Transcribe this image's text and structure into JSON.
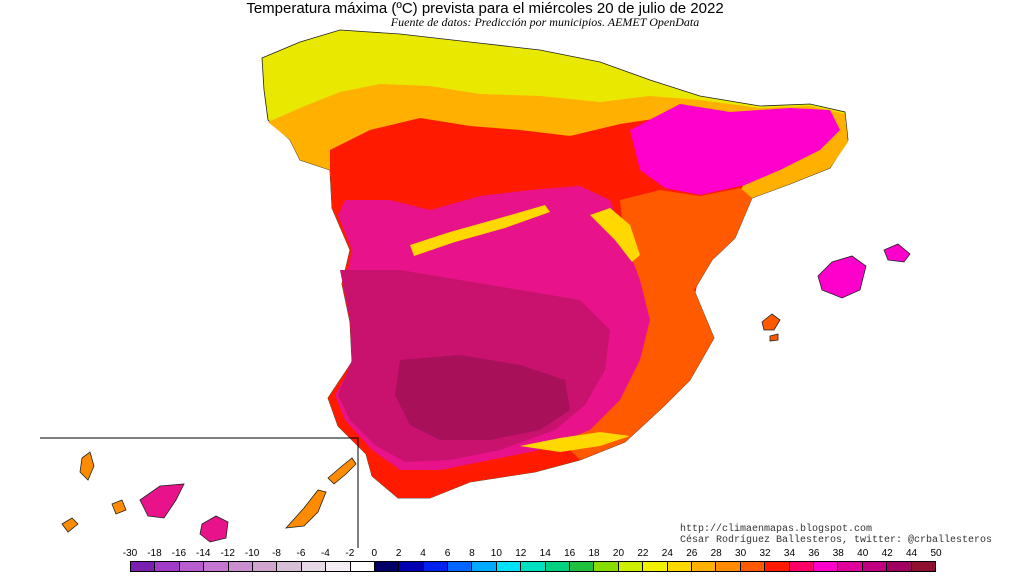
{
  "title": "Temperatura máxima (ºC) prevista para el miércoles 20 de julio de 2022",
  "subtitle": "Fuente de datos: Predicción por municipios. AEMET OpenData",
  "credits": {
    "url": "http://climaenmapas.blogspot.com",
    "author": "César Rodríguez Ballesteros, twitter: @crballesteros"
  },
  "legend": {
    "labels": [
      "-30",
      "-18",
      "-16",
      "-14",
      "-12",
      "-10",
      "-8",
      "-6",
      "-4",
      "-2",
      "0",
      "2",
      "4",
      "6",
      "8",
      "10",
      "12",
      "14",
      "16",
      "18",
      "20",
      "22",
      "24",
      "26",
      "28",
      "30",
      "32",
      "34",
      "36",
      "38",
      "40",
      "42",
      "44",
      "50"
    ],
    "colors": [
      "#7a1fb0",
      "#a23cc8",
      "#b85cd0",
      "#c476d2",
      "#c98fd0",
      "#d0a6cf",
      "#d8bfd8",
      "#e6d8e6",
      "#f4eef4",
      "#ffffff",
      "#000066",
      "#0000b0",
      "#0022ee",
      "#0066ff",
      "#00aaff",
      "#00e0ff",
      "#00e0c0",
      "#00d080",
      "#20c040",
      "#88dd00",
      "#ccee00",
      "#f2f200",
      "#ffd800",
      "#ffb000",
      "#ff8c00",
      "#ff5a00",
      "#ff1a00",
      "#ff0066",
      "#ff00cc",
      "#e0009a",
      "#c00080",
      "#a00060",
      "#901030"
    ]
  },
  "regions": {
    "north_coast": "#e8e800",
    "north_inland": "#ffb000",
    "north_plateau": "#ff1a00",
    "ebro": "#ff00cc",
    "centre": "#e8128a",
    "south": "#c8126e",
    "guadalquivir": "#a8105a",
    "east_coast": "#ff5a00",
    "mountains": "#ffd800",
    "balearics": "#ff00cc",
    "canaries": "#ff8c00",
    "sea": "#ffffff"
  }
}
